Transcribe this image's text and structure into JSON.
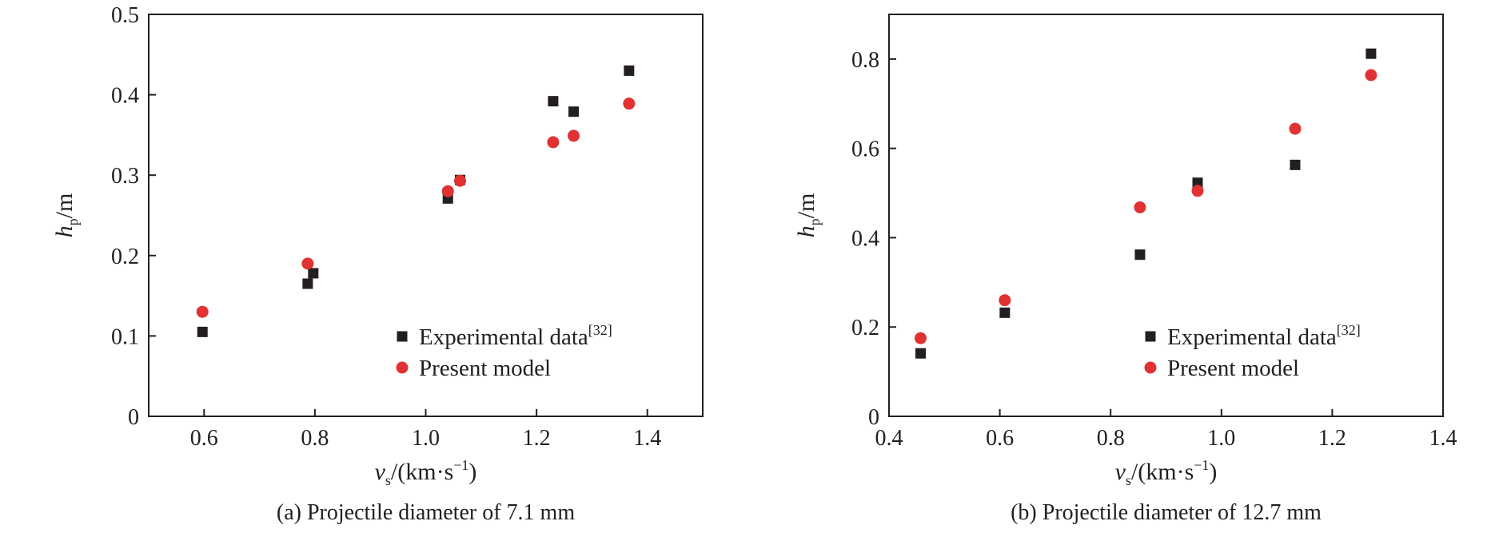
{
  "colors": {
    "experimental": "#231f20",
    "model": "#e03232",
    "axis": "#231f20"
  },
  "legend_placement": "lower-right",
  "chart_data": [
    {
      "id": "a",
      "type": "scatter",
      "caption": "(a) Projectile diameter of 7.1 mm",
      "xlabel": "v",
      "xlabel_sub": "s",
      "xlabel_units": "/(km·s",
      "xlabel_exp": "−1",
      "xlabel_close": ")",
      "ylabel": "h",
      "ylabel_sub": "p",
      "ylabel_units": "/m",
      "xlim": [
        0.5,
        1.5
      ],
      "ylim": [
        0,
        0.5
      ],
      "xticks": [
        0.6,
        0.8,
        1.0,
        1.2,
        1.4
      ],
      "xtick_labels": [
        "0.6",
        "0.8",
        "1.0",
        "1.2",
        "1.4"
      ],
      "yticks": [
        0,
        0.1,
        0.2,
        0.3,
        0.4,
        0.5
      ],
      "ytick_labels": [
        "0",
        "0.1",
        "0.2",
        "0.3",
        "0.4",
        "0.5"
      ],
      "grid": false,
      "series": [
        {
          "name": "Experimental data",
          "name_sup": "[32]",
          "marker": "square",
          "x": [
            0.597,
            0.787,
            0.797,
            1.04,
            1.062,
            1.23,
            1.267,
            1.367
          ],
          "y": [
            0.105,
            0.165,
            0.178,
            0.271,
            0.294,
            0.392,
            0.379,
            0.43
          ]
        },
        {
          "name": "Present model",
          "marker": "circle",
          "x": [
            0.597,
            0.787,
            1.04,
            1.062,
            1.23,
            1.267,
            1.367
          ],
          "y": [
            0.13,
            0.19,
            0.28,
            0.293,
            0.341,
            0.349,
            0.389
          ]
        }
      ]
    },
    {
      "id": "b",
      "type": "scatter",
      "caption": "(b) Projectile diameter of 12.7 mm",
      "xlabel": "v",
      "xlabel_sub": "s",
      "xlabel_units": "/(km·s",
      "xlabel_exp": "−1",
      "xlabel_close": ")",
      "ylabel": "h",
      "ylabel_sub": "p",
      "ylabel_units": "/m",
      "xlim": [
        0.4,
        1.4
      ],
      "ylim": [
        0,
        0.9
      ],
      "xticks": [
        0.4,
        0.6,
        0.8,
        1.0,
        1.2,
        1.4
      ],
      "xtick_labels": [
        "0.4",
        "0.6",
        "0.8",
        "1.0",
        "1.2",
        "1.4"
      ],
      "yticks": [
        0,
        0.2,
        0.4,
        0.6,
        0.8
      ],
      "ytick_labels": [
        "0",
        "0.2",
        "0.4",
        "0.6",
        "0.8"
      ],
      "grid": false,
      "series": [
        {
          "name": "Experimental data",
          "name_sup": "[32]",
          "marker": "square",
          "x": [
            0.457,
            0.609,
            0.853,
            0.957,
            1.133,
            1.27
          ],
          "y": [
            0.141,
            0.232,
            0.362,
            0.523,
            0.563,
            0.812
          ]
        },
        {
          "name": "Present model",
          "marker": "circle",
          "x": [
            0.457,
            0.609,
            0.853,
            0.957,
            1.133,
            1.27
          ],
          "y": [
            0.175,
            0.26,
            0.468,
            0.505,
            0.644,
            0.764
          ]
        }
      ]
    }
  ]
}
